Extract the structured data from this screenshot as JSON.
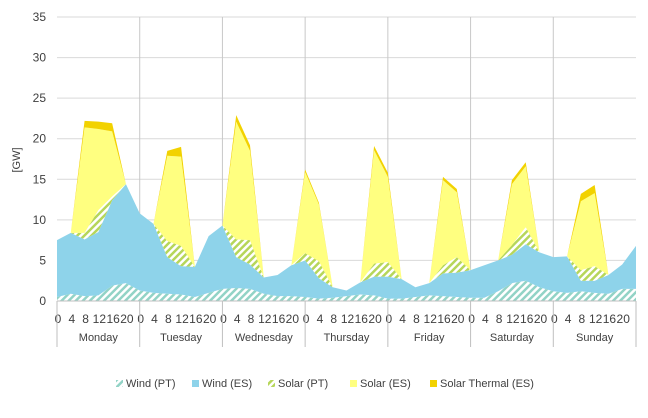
{
  "chart_data": {
    "type": "area",
    "stacked": true,
    "title": "",
    "ylabel": "[GW]",
    "ylim": [
      0,
      35
    ],
    "yticks": [
      0,
      5,
      10,
      15,
      20,
      25,
      30,
      35
    ],
    "grid": true,
    "legend_position": "bottom",
    "days": [
      "Monday",
      "Tuesday",
      "Wednesday",
      "Thursday",
      "Friday",
      "Saturday",
      "Sunday"
    ],
    "hour_tick_labels": [
      "0",
      "4",
      "8",
      "12",
      "16",
      "20"
    ],
    "x_hours": [
      0,
      4,
      8,
      12,
      16,
      20,
      24,
      28,
      32,
      36,
      40,
      44,
      48,
      52,
      56,
      60,
      64,
      68,
      72,
      76,
      80,
      84,
      88,
      92,
      96,
      100,
      104,
      108,
      112,
      116,
      120,
      124,
      128,
      132,
      136,
      140,
      144,
      148,
      152,
      156,
      160,
      164,
      168
    ],
    "series": [
      {
        "name": "Wind (PT)",
        "color": "#92d3c6",
        "pattern": "hatch",
        "values": [
          0.5,
          0.9,
          0.6,
          0.7,
          1.9,
          2.2,
          1.3,
          1.0,
          0.9,
          0.8,
          0.5,
          1.0,
          1.5,
          1.6,
          1.5,
          0.9,
          0.6,
          0.6,
          0.5,
          0.3,
          0.4,
          0.6,
          0.8,
          0.7,
          0.3,
          0.3,
          0.5,
          0.7,
          0.6,
          0.5,
          0.4,
          0.4,
          1.2,
          2.2,
          2.5,
          1.7,
          1.2,
          1.0,
          1.2,
          1.0,
          0.9,
          1.5,
          1.5
        ]
      },
      {
        "name": "Wind (ES)",
        "color": "#8ed3ea",
        "pattern": "solid",
        "values": [
          7.0,
          7.5,
          7.0,
          7.8,
          10.5,
          12.2,
          9.5,
          8.5,
          4.5,
          3.5,
          3.7,
          7.0,
          7.8,
          3.8,
          3.0,
          2.0,
          2.6,
          3.8,
          4.5,
          2.5,
          1.3,
          0.7,
          1.5,
          2.3,
          2.7,
          2.4,
          1.2,
          1.5,
          2.8,
          3.0,
          3.4,
          4.0,
          3.8,
          3.5,
          4.5,
          4.3,
          4.2,
          4.5,
          1.3,
          1.5,
          2.3,
          3.0,
          5.3
        ]
      },
      {
        "name": "Solar (PT)",
        "color": "#d6e88a",
        "pattern": "hatch",
        "values": [
          0,
          0,
          0.8,
          2.7,
          0.5,
          0,
          0,
          0,
          2.0,
          2.5,
          0,
          0,
          0,
          2.2,
          3.0,
          0,
          0,
          0,
          0.9,
          2.1,
          0,
          0,
          0,
          1.6,
          1.8,
          0,
          0,
          0,
          1.0,
          1.9,
          0,
          0,
          0,
          1.2,
          2.1,
          0,
          0,
          0,
          1.3,
          1.8,
          0,
          0,
          0
        ]
      },
      {
        "name": "Solar (ES)",
        "color": "#ffff80",
        "pattern": "solid",
        "values": [
          0,
          0,
          13.0,
          10.0,
          8.0,
          0,
          0,
          0,
          10.5,
          11.0,
          0,
          0,
          0,
          14.5,
          11.0,
          0,
          0,
          0,
          10.0,
          7.0,
          0,
          0,
          0,
          14.0,
          10.5,
          0,
          0,
          0,
          10.5,
          8.0,
          0,
          0,
          0,
          7.5,
          7.5,
          0,
          0,
          0,
          8.5,
          9.0,
          0,
          0,
          0
        ]
      },
      {
        "name": "Solar Thermal (ES)",
        "color": "#f2d200",
        "pattern": "solid",
        "values": [
          0,
          0,
          0.8,
          0.9,
          1.0,
          0,
          0,
          0,
          0.6,
          1.2,
          0,
          0,
          0,
          0.8,
          0.7,
          0,
          0,
          0,
          0.3,
          0.2,
          0,
          0,
          0,
          0.5,
          0.5,
          0,
          0,
          0,
          0.4,
          0.4,
          0,
          0,
          0,
          0.5,
          0.5,
          0,
          0,
          0,
          0.9,
          1.0,
          0,
          0,
          0
        ]
      }
    ]
  }
}
